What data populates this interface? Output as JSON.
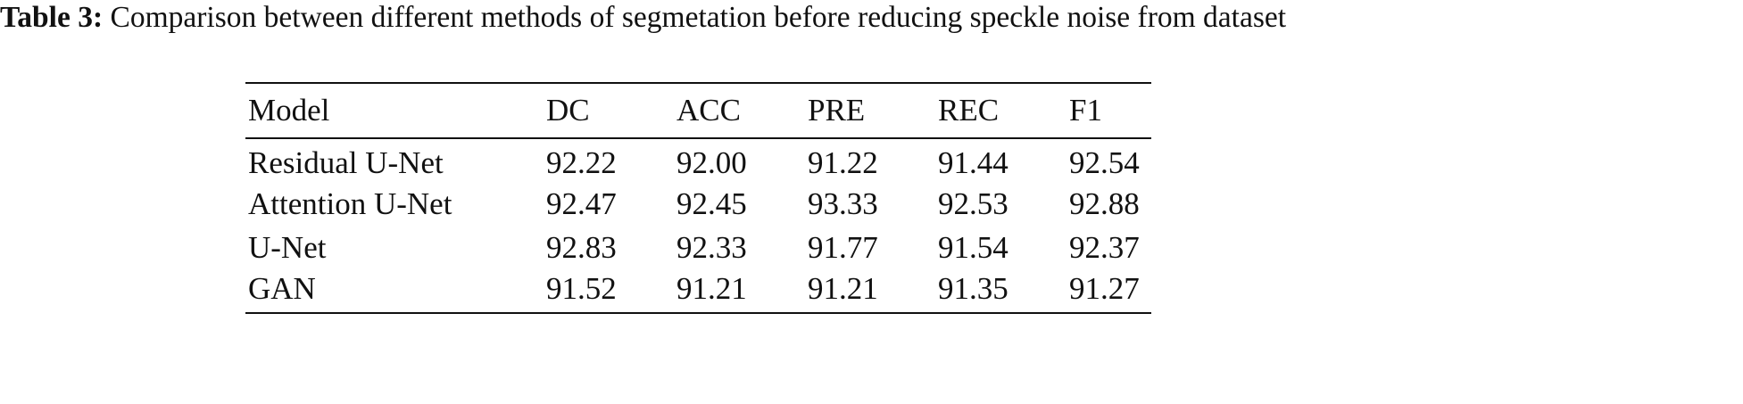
{
  "caption": {
    "label": "Table 3:",
    "text": "Comparison between different methods of segmetation before reducing speckle noise from dataset"
  },
  "table": {
    "header": [
      "Model",
      "DC",
      "ACC",
      "PRE",
      "REC",
      "F1"
    ],
    "rows": [
      [
        "Residual U-Net",
        "92.22",
        "92.00",
        "91.22",
        "91.44",
        "92.54"
      ],
      [
        "Attention U-Net",
        "92.47",
        "92.45",
        "93.33",
        "92.53",
        "92.88"
      ],
      [
        "U-Net",
        "92.83",
        "92.33",
        "91.77",
        "91.54",
        "92.37"
      ],
      [
        "GAN",
        "91.52",
        "91.21",
        "91.21",
        "91.35",
        "91.27"
      ]
    ]
  }
}
